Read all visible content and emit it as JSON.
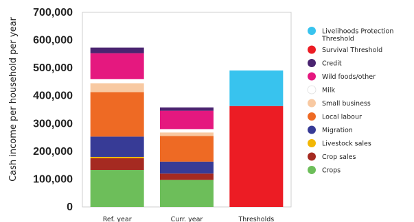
{
  "chart_data": {
    "type": "bar",
    "stacked": true,
    "ylabel": "Cash income per household per year",
    "xlabel": "",
    "ylim": [
      0,
      700000
    ],
    "yticks": [
      0,
      100000,
      200000,
      300000,
      400000,
      500000,
      600000,
      700000
    ],
    "ytick_labels": [
      "0",
      "100,000",
      "200,000",
      "300,000",
      "400,000",
      "500,000",
      "600,000",
      "700,000"
    ],
    "categories": [
      "Ref. year",
      "Curr. year",
      "Thresholds"
    ],
    "grid": false,
    "legend_position": "right",
    "series": [
      {
        "name": "Crops",
        "color": "#6dbe5a",
        "values": [
          133000,
          97000,
          0
        ]
      },
      {
        "name": "Crop sales",
        "color": "#a52a21",
        "values": [
          42000,
          23000,
          0
        ]
      },
      {
        "name": "Livestock sales",
        "color": "#f2b705",
        "values": [
          5000,
          0,
          0
        ]
      },
      {
        "name": "Migration",
        "color": "#373b96",
        "values": [
          73000,
          43000,
          0
        ]
      },
      {
        "name": "Local labour",
        "color": "#ee6a24",
        "values": [
          160000,
          92000,
          0
        ]
      },
      {
        "name": "Small business",
        "color": "#f8c9a2",
        "values": [
          32000,
          13000,
          0
        ]
      },
      {
        "name": "Milk",
        "color": "#ffffff",
        "values": [
          15000,
          12000,
          0
        ]
      },
      {
        "name": "Wild foods/other",
        "color": "#e5187f",
        "values": [
          93000,
          66000,
          0
        ]
      },
      {
        "name": "Credit",
        "color": "#4a2470",
        "values": [
          20000,
          12000,
          0
        ]
      },
      {
        "name": "Survival Threshold",
        "color": "#ec1c24",
        "values": [
          0,
          0,
          363000
        ]
      },
      {
        "name": "Livelihoods Protection Threshold",
        "color": "#38c3ee",
        "values": [
          0,
          0,
          128000
        ]
      }
    ],
    "legend_order": [
      "Livelihoods Protection Threshold",
      "Survival Threshold",
      "Credit",
      "Wild foods/other",
      "Milk",
      "Small business",
      "Local labour",
      "Migration",
      "Livestock sales",
      "Crop sales",
      "Crops"
    ]
  }
}
